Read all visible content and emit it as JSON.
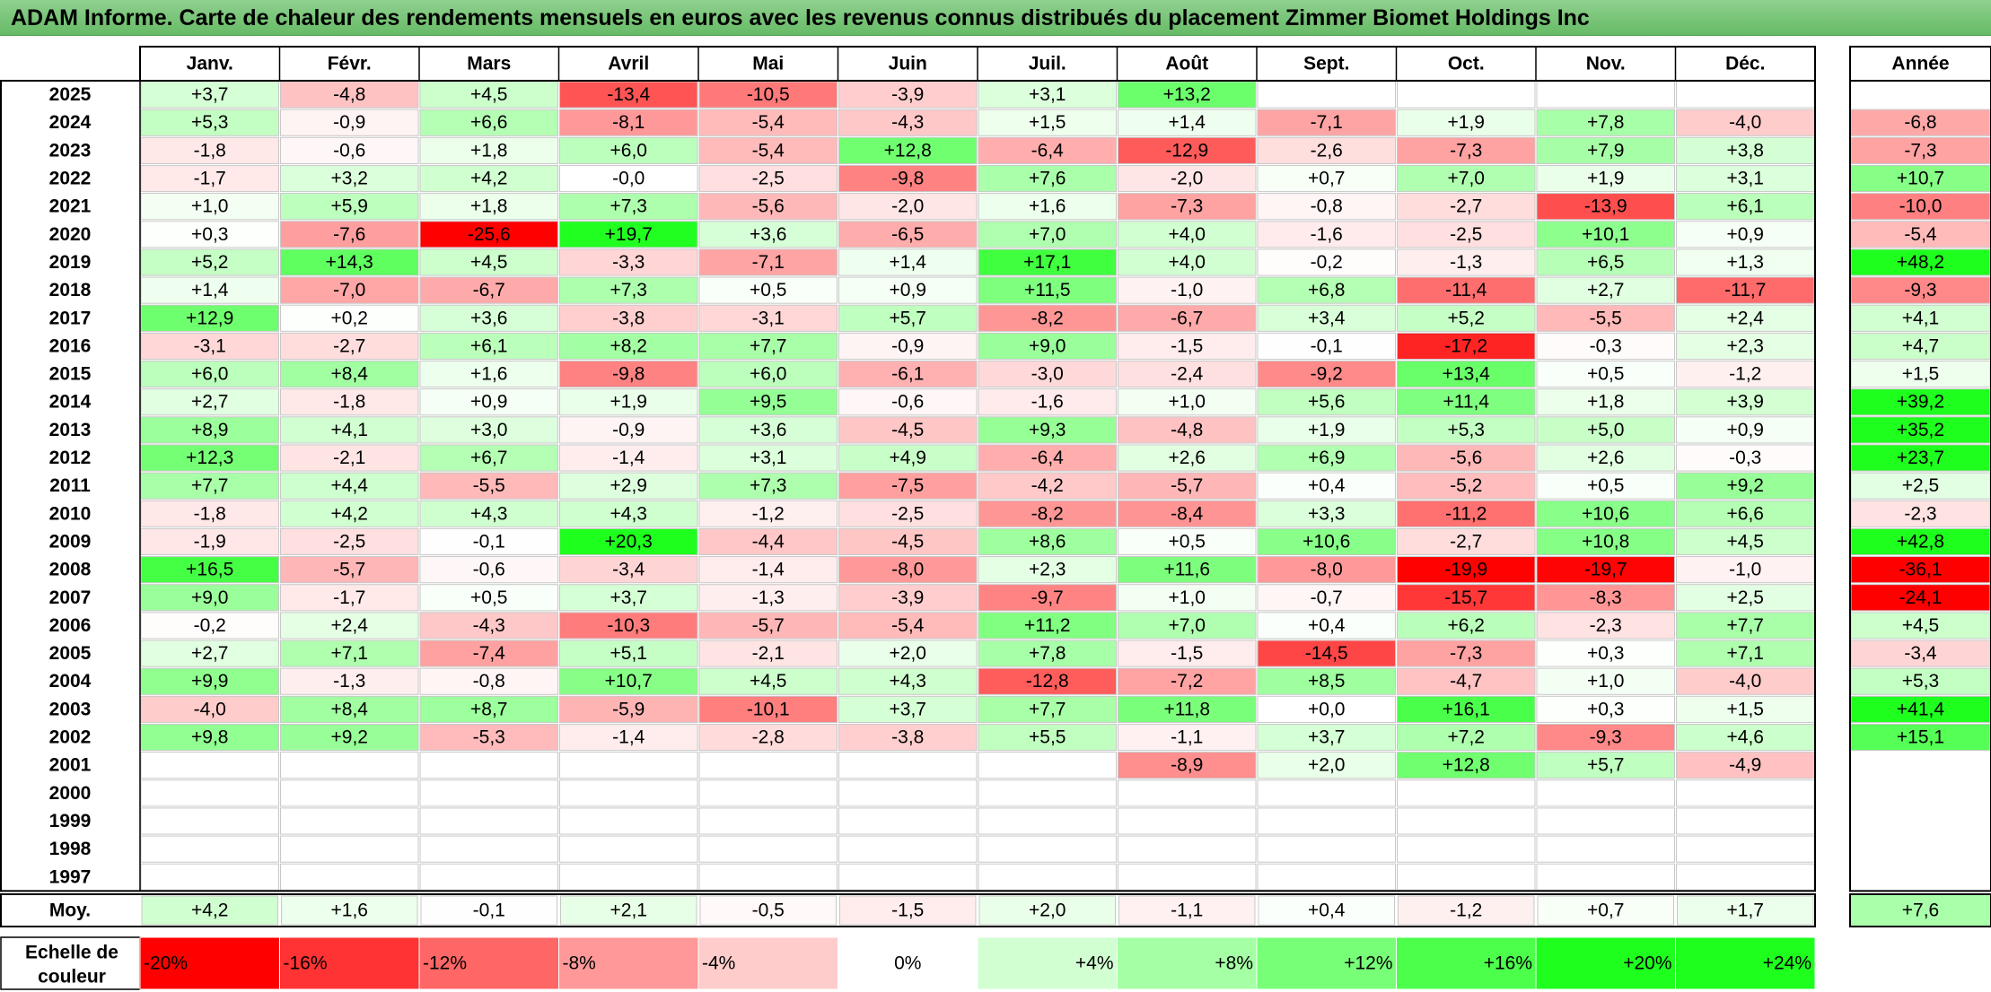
{
  "chart_data": {
    "type": "heatmap",
    "title": "ADAM Informe. Carte de chaleur des rendements mensuels en euros avec les revenus connus distribués du placement Zimmer Biomet Holdings Inc",
    "months": [
      "Janv.",
      "Févr.",
      "Mars",
      "Avril",
      "Mai",
      "Juin",
      "Juil.",
      "Août",
      "Sept.",
      "Oct.",
      "Nov.",
      "Déc."
    ],
    "year_header": "Année",
    "rows": [
      {
        "year": "2025",
        "values": [
          "+3,7",
          "-4,8",
          "+4,5",
          "-13,4",
          "-10,5",
          "-3,9",
          "+3,1",
          "+13,2",
          "",
          "",
          "",
          ""
        ],
        "annual": ""
      },
      {
        "year": "2024",
        "values": [
          "+5,3",
          "-0,9",
          "+6,6",
          "-8,1",
          "-5,4",
          "-4,3",
          "+1,5",
          "+1,4",
          "-7,1",
          "+1,9",
          "+7,8",
          "-4,0"
        ],
        "annual": "-6,8"
      },
      {
        "year": "2023",
        "values": [
          "-1,8",
          "-0,6",
          "+1,8",
          "+6,0",
          "-5,4",
          "+12,8",
          "-6,4",
          "-12,9",
          "-2,6",
          "-7,3",
          "+7,9",
          "+3,8"
        ],
        "annual": "-7,3"
      },
      {
        "year": "2022",
        "values": [
          "-1,7",
          "+3,2",
          "+4,2",
          "-0,0",
          "-2,5",
          "-9,8",
          "+7,6",
          "-2,0",
          "+0,7",
          "+7,0",
          "+1,9",
          "+3,1"
        ],
        "annual": "+10,7"
      },
      {
        "year": "2021",
        "values": [
          "+1,0",
          "+5,9",
          "+1,8",
          "+7,3",
          "-5,6",
          "-2,0",
          "+1,6",
          "-7,3",
          "-0,8",
          "-2,7",
          "-13,9",
          "+6,1"
        ],
        "annual": "-10,0"
      },
      {
        "year": "2020",
        "values": [
          "+0,3",
          "-7,6",
          "-25,6",
          "+19,7",
          "+3,6",
          "-6,5",
          "+7,0",
          "+4,0",
          "-1,6",
          "-2,5",
          "+10,1",
          "+0,9"
        ],
        "annual": "-5,4"
      },
      {
        "year": "2019",
        "values": [
          "+5,2",
          "+14,3",
          "+4,5",
          "-3,3",
          "-7,1",
          "+1,4",
          "+17,1",
          "+4,0",
          "-0,2",
          "-1,3",
          "+6,5",
          "+1,3"
        ],
        "annual": "+48,2"
      },
      {
        "year": "2018",
        "values": [
          "+1,4",
          "-7,0",
          "-6,7",
          "+7,3",
          "+0,5",
          "+0,9",
          "+11,5",
          "-1,0",
          "+6,8",
          "-11,4",
          "+2,7",
          "-11,7"
        ],
        "annual": "-9,3"
      },
      {
        "year": "2017",
        "values": [
          "+12,9",
          "+0,2",
          "+3,6",
          "-3,8",
          "-3,1",
          "+5,7",
          "-8,2",
          "-6,7",
          "+3,4",
          "+5,2",
          "-5,5",
          "+2,4"
        ],
        "annual": "+4,1"
      },
      {
        "year": "2016",
        "values": [
          "-3,1",
          "-2,7",
          "+6,1",
          "+8,2",
          "+7,7",
          "-0,9",
          "+9,0",
          "-1,5",
          "-0,1",
          "-17,2",
          "-0,3",
          "+2,3"
        ],
        "annual": "+4,7"
      },
      {
        "year": "2015",
        "values": [
          "+6,0",
          "+8,4",
          "+1,6",
          "-9,8",
          "+6,0",
          "-6,1",
          "-3,0",
          "-2,4",
          "-9,2",
          "+13,4",
          "+0,5",
          "-1,2"
        ],
        "annual": "+1,5"
      },
      {
        "year": "2014",
        "values": [
          "+2,7",
          "-1,8",
          "+0,9",
          "+1,9",
          "+9,5",
          "-0,6",
          "-1,6",
          "+1,0",
          "+5,6",
          "+11,4",
          "+1,8",
          "+3,9"
        ],
        "annual": "+39,2"
      },
      {
        "year": "2013",
        "values": [
          "+8,9",
          "+4,1",
          "+3,0",
          "-0,9",
          "+3,6",
          "-4,5",
          "+9,3",
          "-4,8",
          "+1,9",
          "+5,3",
          "+5,0",
          "+0,9"
        ],
        "annual": "+35,2"
      },
      {
        "year": "2012",
        "values": [
          "+12,3",
          "-2,1",
          "+6,7",
          "-1,4",
          "+3,1",
          "+4,9",
          "-6,4",
          "+2,6",
          "+6,9",
          "-5,6",
          "+2,6",
          "-0,3"
        ],
        "annual": "+23,7"
      },
      {
        "year": "2011",
        "values": [
          "+7,7",
          "+4,4",
          "-5,5",
          "+2,9",
          "+7,3",
          "-7,5",
          "-4,2",
          "-5,7",
          "+0,4",
          "-5,2",
          "+0,5",
          "+9,2"
        ],
        "annual": "+2,5"
      },
      {
        "year": "2010",
        "values": [
          "-1,8",
          "+4,2",
          "+4,3",
          "+4,3",
          "-1,2",
          "-2,5",
          "-8,2",
          "-8,4",
          "+3,3",
          "-11,2",
          "+10,6",
          "+6,6"
        ],
        "annual": "-2,3"
      },
      {
        "year": "2009",
        "values": [
          "-1,9",
          "-2,5",
          "-0,1",
          "+20,3",
          "-4,4",
          "-4,5",
          "+8,6",
          "+0,5",
          "+10,6",
          "-2,7",
          "+10,8",
          "+4,5"
        ],
        "annual": "+42,8"
      },
      {
        "year": "2008",
        "values": [
          "+16,5",
          "-5,7",
          "-0,6",
          "-3,4",
          "-1,4",
          "-8,0",
          "+2,3",
          "+11,6",
          "-8,0",
          "-19,9",
          "-19,7",
          "-1,0"
        ],
        "annual": "-36,1"
      },
      {
        "year": "2007",
        "values": [
          "+9,0",
          "-1,7",
          "+0,5",
          "+3,7",
          "-1,3",
          "-3,9",
          "-9,7",
          "+1,0",
          "-0,7",
          "-15,7",
          "-8,3",
          "+2,5"
        ],
        "annual": "-24,1"
      },
      {
        "year": "2006",
        "values": [
          "-0,2",
          "+2,4",
          "-4,3",
          "-10,3",
          "-5,7",
          "-5,4",
          "+11,2",
          "+7,0",
          "+0,4",
          "+6,2",
          "-2,3",
          "+7,7"
        ],
        "annual": "+4,5"
      },
      {
        "year": "2005",
        "values": [
          "+2,7",
          "+7,1",
          "-7,4",
          "+5,1",
          "-2,1",
          "+2,0",
          "+7,8",
          "-1,5",
          "-14,5",
          "-7,3",
          "+0,3",
          "+7,1"
        ],
        "annual": "-3,4"
      },
      {
        "year": "2004",
        "values": [
          "+9,9",
          "-1,3",
          "-0,8",
          "+10,7",
          "+4,5",
          "+4,3",
          "-12,8",
          "-7,2",
          "+8,5",
          "-4,7",
          "+1,0",
          "-4,0"
        ],
        "annual": "+5,3"
      },
      {
        "year": "2003",
        "values": [
          "-4,0",
          "+8,4",
          "+8,7",
          "-5,9",
          "-10,1",
          "+3,7",
          "+7,7",
          "+11,8",
          "+0,0",
          "+16,1",
          "+0,3",
          "+1,5"
        ],
        "annual": "+41,4"
      },
      {
        "year": "2002",
        "values": [
          "+9,8",
          "+9,2",
          "-5,3",
          "-1,4",
          "-2,8",
          "-3,8",
          "+5,5",
          "-1,1",
          "+3,7",
          "+7,2",
          "-9,3",
          "+4,6"
        ],
        "annual": "+15,1"
      },
      {
        "year": "2001",
        "values": [
          "",
          "",
          "",
          "",
          "",
          "",
          "",
          "-8,9",
          "+2,0",
          "+12,8",
          "+5,7",
          "-4,9"
        ],
        "annual": ""
      },
      {
        "year": "2000",
        "values": [
          "",
          "",
          "",
          "",
          "",
          "",
          "",
          "",
          "",
          "",
          "",
          ""
        ],
        "annual": ""
      },
      {
        "year": "1999",
        "values": [
          "",
          "",
          "",
          "",
          "",
          "",
          "",
          "",
          "",
          "",
          "",
          ""
        ],
        "annual": ""
      },
      {
        "year": "1998",
        "values": [
          "",
          "",
          "",
          "",
          "",
          "",
          "",
          "",
          "",
          "",
          "",
          ""
        ],
        "annual": ""
      },
      {
        "year": "1997",
        "values": [
          "",
          "",
          "",
          "",
          "",
          "",
          "",
          "",
          "",
          "",
          "",
          ""
        ],
        "annual": ""
      }
    ],
    "average": {
      "label": "Moy.",
      "values": [
        "+4,2",
        "+1,6",
        "-0,1",
        "+2,1",
        "-0,5",
        "-1,5",
        "+2,0",
        "-1,1",
        "+0,4",
        "-1,2",
        "+0,7",
        "+1,7"
      ],
      "annual": "+7,6"
    },
    "scale": {
      "label_lines": [
        "Echelle de",
        "couleur"
      ],
      "stops": [
        "-20%",
        "-16%",
        "-12%",
        "-8%",
        "-4%",
        "0%",
        "+4%",
        "+8%",
        "+12%",
        "+16%",
        "+20%",
        "+24%"
      ],
      "values": [
        -20,
        -16,
        -12,
        -8,
        -4,
        0,
        4,
        8,
        12,
        16,
        20,
        24
      ]
    },
    "colors": {
      "negative": "#ff0000",
      "positive": "#00ee00",
      "neutral": "#ffffff",
      "title_bg": "#7cc47c"
    }
  }
}
